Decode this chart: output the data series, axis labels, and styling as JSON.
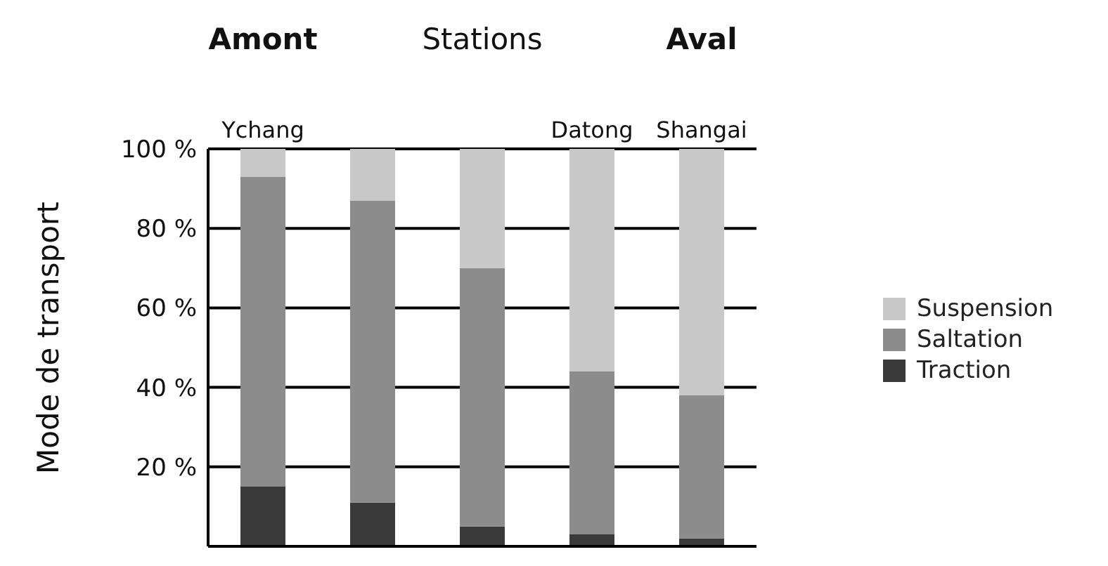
{
  "chart_data": {
    "type": "bar",
    "stacked": true,
    "ylabel": "Mode de transport",
    "annotations": [
      "Amont",
      "Stations",
      "Aval"
    ],
    "categories": [
      "Ychang",
      null,
      null,
      "Datong",
      "Shangai"
    ],
    "series": [
      {
        "name": "Traction",
        "color": "#3a3a3a",
        "values": [
          15,
          11,
          5,
          3,
          2
        ]
      },
      {
        "name": "Saltation",
        "color": "#8c8c8c",
        "values": [
          78,
          76,
          65,
          41,
          36
        ]
      },
      {
        "name": "Suspension",
        "color": "#c8c8c8",
        "values": [
          7,
          13,
          30,
          56,
          62
        ]
      }
    ],
    "ylim": [
      0,
      100
    ],
    "yticks": [
      {
        "value": 20,
        "label": "20 %"
      },
      {
        "value": 40,
        "label": "40 %"
      },
      {
        "value": 60,
        "label": "60 %"
      },
      {
        "value": 80,
        "label": "80 %"
      },
      {
        "value": 100,
        "label": "100 %"
      }
    ],
    "grid": "y",
    "legend": "right"
  }
}
